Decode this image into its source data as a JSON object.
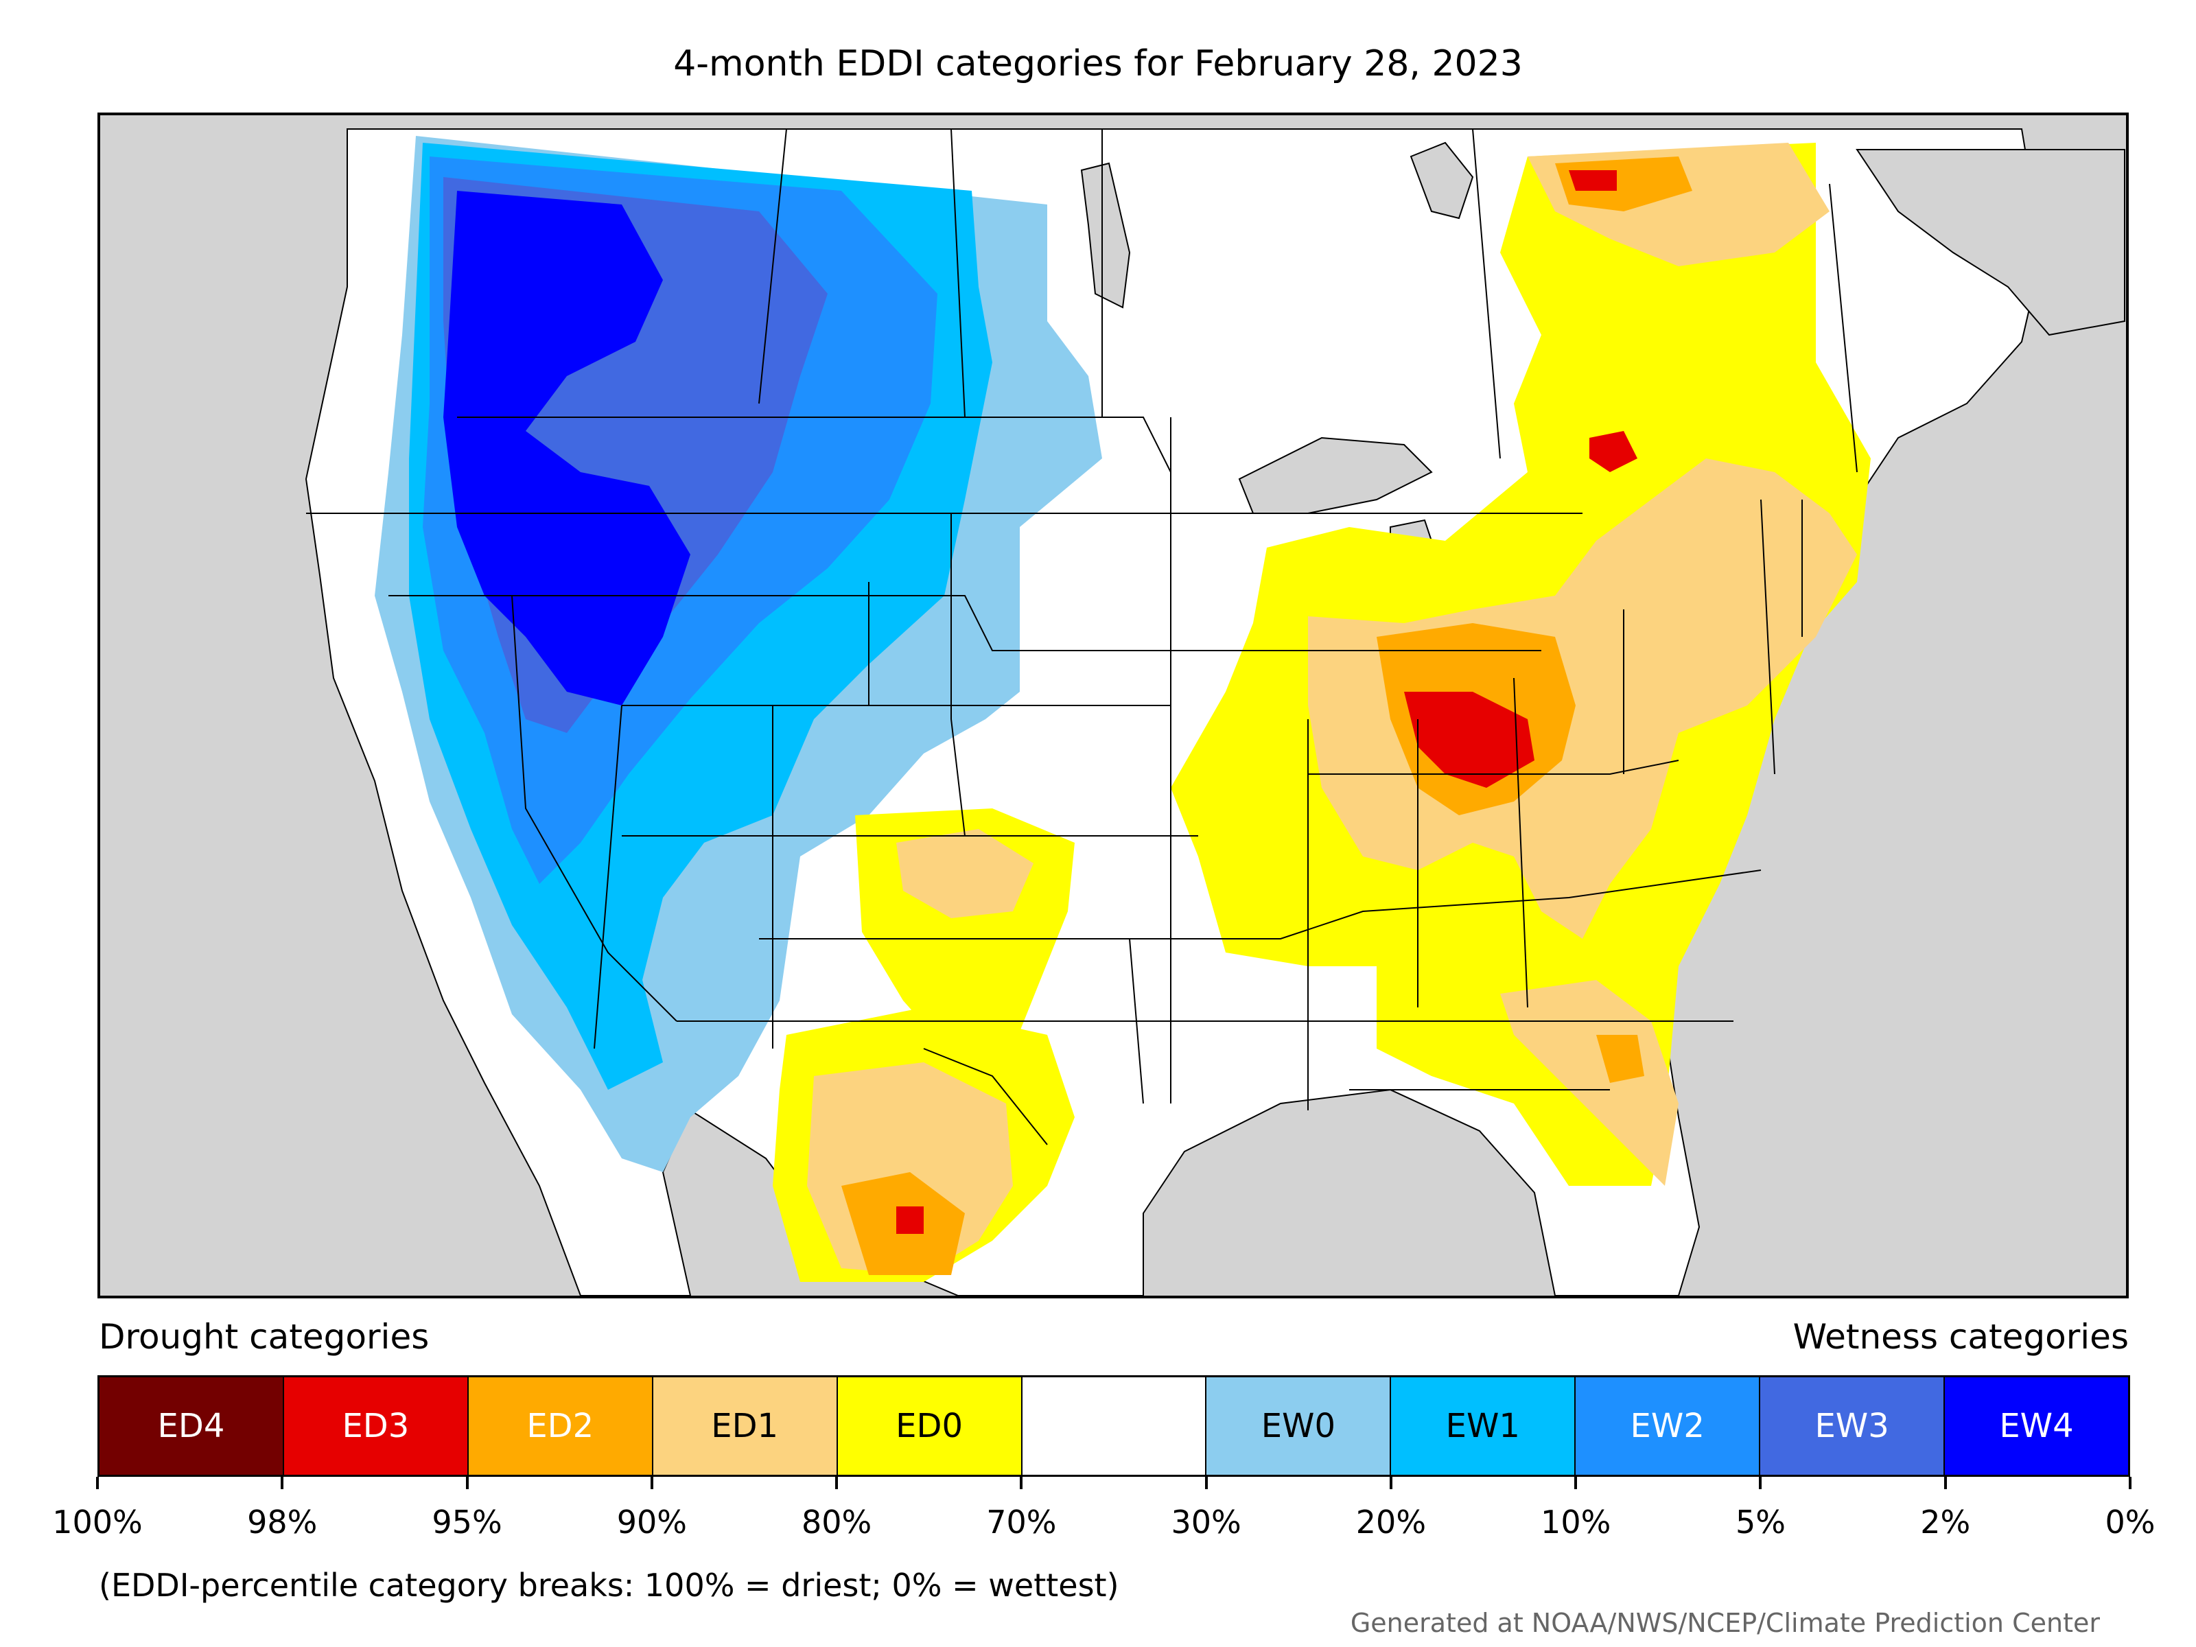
{
  "title": "4-month EDDI categories for February 28, 2023",
  "legend": {
    "drought_heading": "Drought categories",
    "wetness_heading": "Wetness categories",
    "categories": [
      {
        "label": "ED4",
        "color": "#730000",
        "text_color": "#ffffff"
      },
      {
        "label": "ED3",
        "color": "#e60000",
        "text_color": "#ffffff"
      },
      {
        "label": "ED2",
        "color": "#ffaa00",
        "text_color": "#ffffff"
      },
      {
        "label": "ED1",
        "color": "#fcd37f",
        "text_color": "#000000"
      },
      {
        "label": "ED0",
        "color": "#ffff00",
        "text_color": "#000000"
      },
      {
        "label": "",
        "color": "#ffffff",
        "text_color": "#000000"
      },
      {
        "label": "EW0",
        "color": "#8ccdef",
        "text_color": "#000000"
      },
      {
        "label": "EW1",
        "color": "#00bfff",
        "text_color": "#000000"
      },
      {
        "label": "EW2",
        "color": "#1e90ff",
        "text_color": "#ffffff"
      },
      {
        "label": "EW3",
        "color": "#4169e1",
        "text_color": "#ffffff"
      },
      {
        "label": "EW4",
        "color": "#0000ff",
        "text_color": "#ffffff"
      }
    ],
    "tick_labels": [
      "100%",
      "98%",
      "95%",
      "90%",
      "80%",
      "70%",
      "30%",
      "20%",
      "10%",
      "5%",
      "2%",
      "0%"
    ]
  },
  "footnote": "(EDDI-percentile category breaks: 100% = driest; 0% = wettest)",
  "credit": "Generated at NOAA/NWS/NCEP/Climate Prediction Center",
  "map_colors": {
    "background": "#d3d3d3",
    "land": "#ffffff",
    "boundary": "#000000"
  }
}
